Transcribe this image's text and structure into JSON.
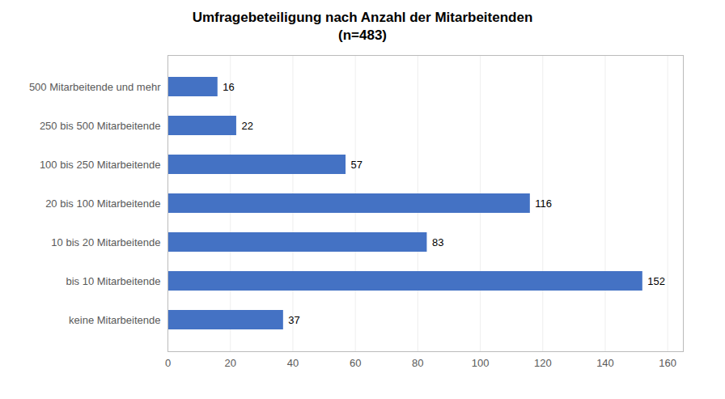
{
  "chart_data": {
    "type": "bar",
    "orientation": "horizontal",
    "title": "Umfragebeteiligung nach Anzahl der Mitarbeitenden",
    "subtitle": "(n=483)",
    "categories": [
      "keine Mitarbeitende",
      "bis 10 Mitarbeitende",
      "10 bis 20 Mitarbeitende",
      "20 bis 100 Mitarbeitende",
      "100 bis 250 Mitarbeitende",
      "250 bis 500 Mitarbeitende",
      "500 Mitarbeitende und mehr"
    ],
    "values": [
      37,
      152,
      83,
      116,
      57,
      22,
      16
    ],
    "color": "#4472C4",
    "xlim": [
      0,
      165
    ],
    "xticks": [
      0,
      20,
      40,
      60,
      80,
      100,
      120,
      140,
      160
    ],
    "grid": true,
    "data_labels": true
  }
}
